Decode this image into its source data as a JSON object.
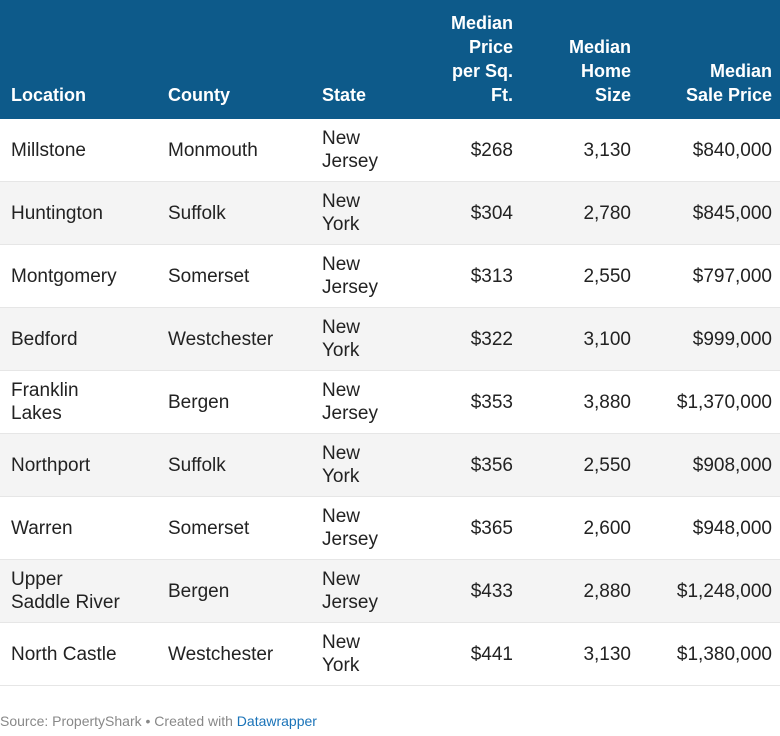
{
  "chart_data": {
    "type": "table",
    "columns": [
      "Location",
      "County",
      "State",
      "Median Price per Sq. Ft.",
      "Median Home Size",
      "Median Sale Price"
    ],
    "rows": [
      {
        "location": "Millstone",
        "county": "Monmouth",
        "state": "New Jersey",
        "ppsf": "$268",
        "size": "3,130",
        "price": "$840,000"
      },
      {
        "location": "Huntington",
        "county": "Suffolk",
        "state": "New York",
        "ppsf": "$304",
        "size": "2,780",
        "price": "$845,000"
      },
      {
        "location": "Montgomery",
        "county": "Somerset",
        "state": "New Jersey",
        "ppsf": "$313",
        "size": "2,550",
        "price": "$797,000"
      },
      {
        "location": "Bedford",
        "county": "Westchester",
        "state": "New York",
        "ppsf": "$322",
        "size": "3,100",
        "price": "$999,000"
      },
      {
        "location": "Franklin Lakes",
        "county": "Bergen",
        "state": "New Jersey",
        "ppsf": "$353",
        "size": "3,880",
        "price": "$1,370,000"
      },
      {
        "location": "Northport",
        "county": "Suffolk",
        "state": "New York",
        "ppsf": "$356",
        "size": "2,550",
        "price": "$908,000"
      },
      {
        "location": "Warren",
        "county": "Somerset",
        "state": "New Jersey",
        "ppsf": "$365",
        "size": "2,600",
        "price": "$948,000"
      },
      {
        "location": "Upper Saddle River",
        "county": "Bergen",
        "state": "New Jersey",
        "ppsf": "$433",
        "size": "2,880",
        "price": "$1,248,000"
      },
      {
        "location": "North Castle",
        "county": "Westchester",
        "state": "New York",
        "ppsf": "$441",
        "size": "3,130",
        "price": "$1,380,000"
      }
    ]
  },
  "header": {
    "location": "Location",
    "county": "County",
    "state": "State",
    "ppsf_lines": [
      "Median",
      "Price",
      "per Sq.",
      "Ft."
    ],
    "size_lines": [
      "Median",
      "Home",
      "Size"
    ],
    "price_lines": [
      "Median",
      "Sale Price"
    ]
  },
  "display": {
    "location_lines": [
      [
        "Millstone"
      ],
      [
        "Huntington"
      ],
      [
        "Montgomery"
      ],
      [
        "Bedford"
      ],
      [
        "Franklin",
        "Lakes"
      ],
      [
        "Northport"
      ],
      [
        "Warren"
      ],
      [
        "Upper",
        "Saddle River"
      ],
      [
        "North Castle"
      ]
    ],
    "state_lines": [
      [
        "New",
        "Jersey"
      ],
      [
        "New",
        "York"
      ],
      [
        "New",
        "Jersey"
      ],
      [
        "New",
        "York"
      ],
      [
        "New",
        "Jersey"
      ],
      [
        "New",
        "York"
      ],
      [
        "New",
        "Jersey"
      ],
      [
        "New",
        "Jersey"
      ],
      [
        "New",
        "York"
      ]
    ]
  },
  "footer": {
    "source": "Source: PropertyShark • Created with ",
    "link": "Datawrapper"
  },
  "colors": {
    "header_bg": "#0d5a8a",
    "stripe_bg": "#f4f4f4",
    "link": "#1a73b8"
  }
}
